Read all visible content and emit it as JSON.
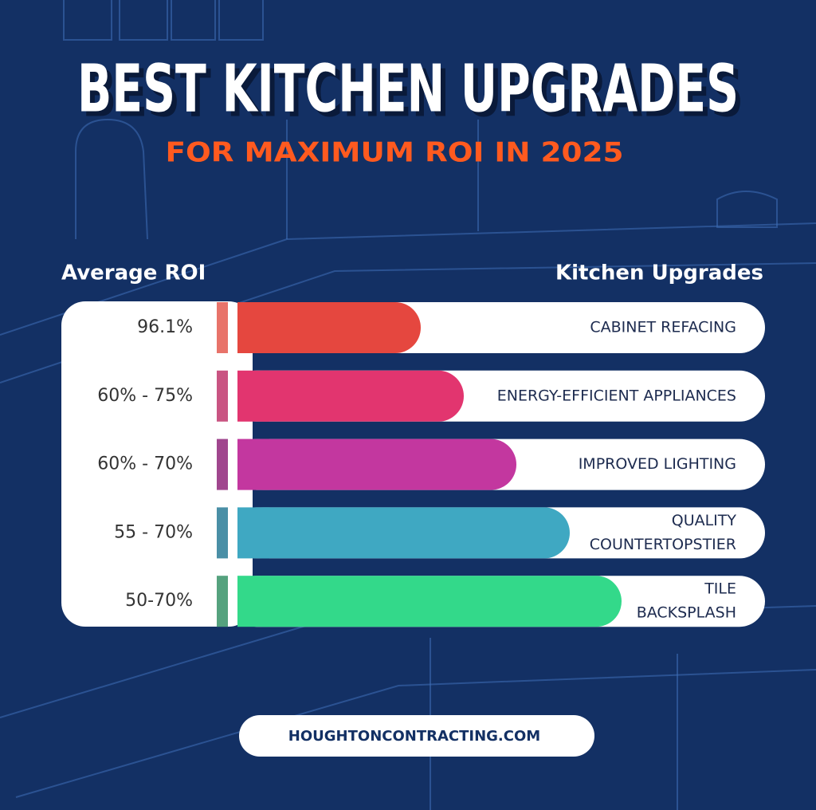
{
  "header": {
    "title": "BEST KITCHEN UPGRADES",
    "subtitle": "FOR MAXIMUM ROI IN 2025"
  },
  "columns": {
    "left": "Average ROI",
    "right": "Kitchen Upgrades"
  },
  "rows": [
    {
      "roi": "96.1%",
      "upgrade": [
        "CABINET REFACING"
      ]
    },
    {
      "roi": "60% - 75%",
      "upgrade": [
        "ENERGY-EFFICIENT APPLIANCES"
      ]
    },
    {
      "roi": "60% - 70%",
      "upgrade": [
        "IMPROVED LIGHTING"
      ]
    },
    {
      "roi": "55 - 70%",
      "upgrade": [
        "QUALITY",
        "COUNTERTOPSTIER"
      ]
    },
    {
      "roi": "50-70%",
      "upgrade": [
        "TILE",
        "BACKSPLASH"
      ]
    }
  ],
  "footer": {
    "url": "HOUGHTONCONTRACTING.COM"
  }
}
